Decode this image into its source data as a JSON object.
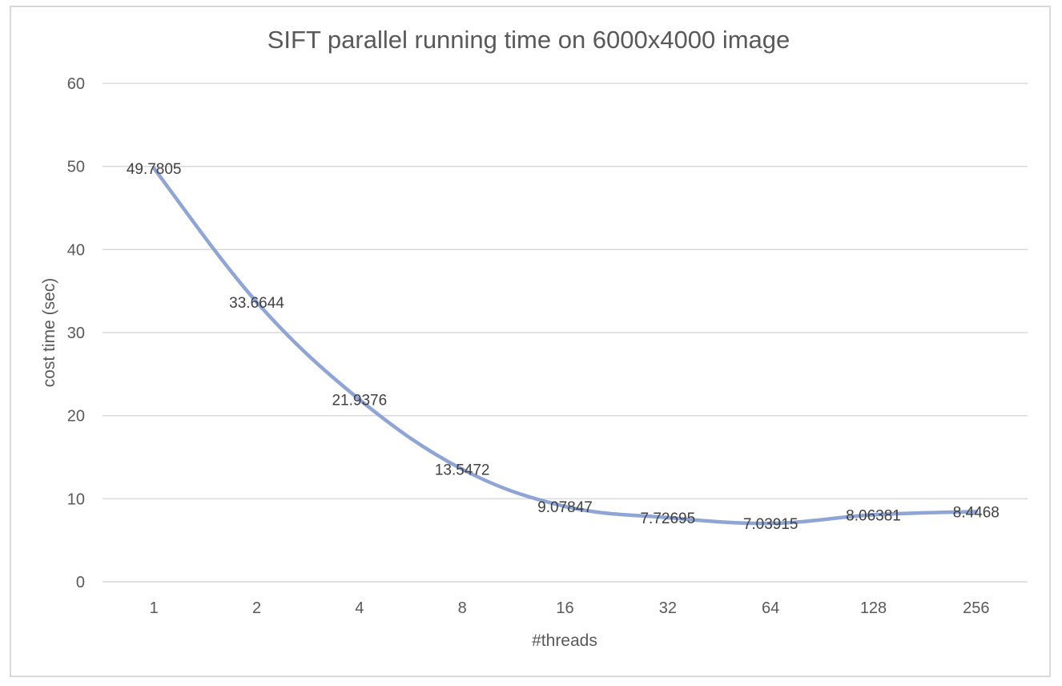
{
  "chart_data": {
    "type": "line",
    "title": "SIFT parallel running time on 6000x4000 image",
    "xlabel": "#threads",
    "ylabel": "cost time (sec)",
    "categories": [
      "1",
      "2",
      "4",
      "8",
      "16",
      "32",
      "64",
      "128",
      "256"
    ],
    "series": [
      {
        "values": [
          49.7805,
          33.6644,
          21.9376,
          13.5472,
          9.07847,
          7.72695,
          7.03915,
          8.06381,
          8.4468
        ],
        "data_labels": [
          "49.7805",
          "33.6644",
          "21.9376",
          "13.5472",
          "9.07847",
          "7.72695",
          "7.03915",
          "8.06381",
          "8.4468"
        ],
        "color": "#8fa5d6"
      }
    ],
    "ylim": [
      0,
      60
    ],
    "yticks": [
      0,
      10,
      20,
      30,
      40,
      50,
      60
    ],
    "grid": true,
    "legend": "none"
  }
}
